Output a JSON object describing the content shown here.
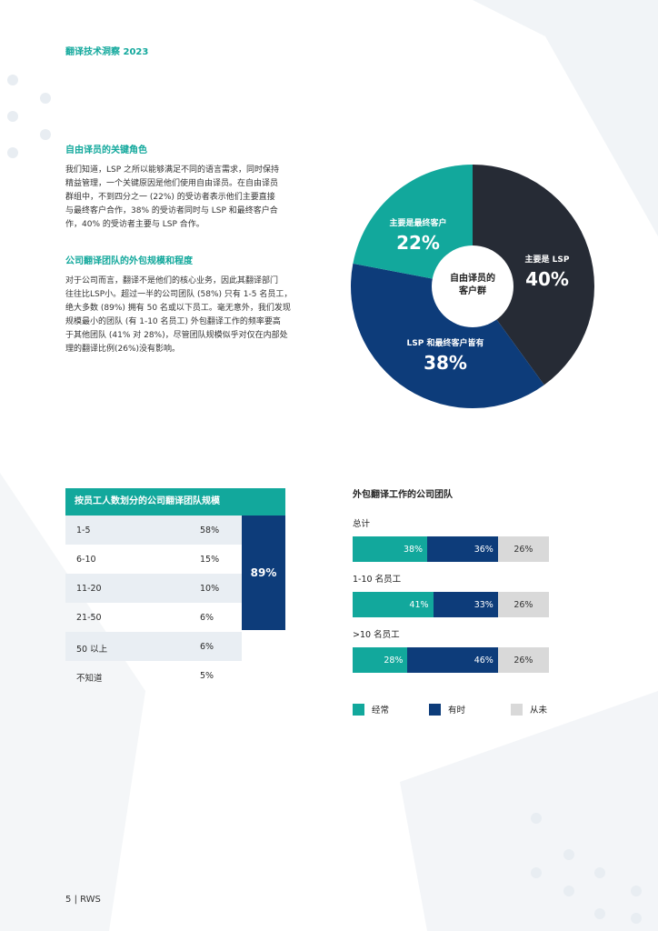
{
  "header": {
    "title": "翻译技术洞察 2023"
  },
  "section1": {
    "heading": "自由译员的关键角色",
    "lines": [
      "我们知道，LSP 之所以能够满足不同的语言需求，同时保持",
      "精益管理，一个关键原因是他们使用自由译员。在自由译员",
      "群组中，不到四分之一 (22%) 的受访者表示他们主要直接",
      "与最终客户合作，38% 的受访者同时与 LSP 和最终客户合",
      "作，40% 的受访者主要与 LSP 合作。"
    ]
  },
  "section2": {
    "heading": "公司翻译团队的外包规模和程度",
    "lines": [
      "对于公司而言，翻译不是他们的核心业务，因此其翻译部门",
      "往往比LSP小。超过一半的公司团队 (58%) 只有 1-5 名员工，",
      "绝大多数 (89%) 拥有 50 名或以下员工。毫无意外，我们发现",
      "规模最小的团队 (有 1-10 名员工) 外包翻译工作的频率要高",
      "于其他团队 (41% 对 28%)，尽管团队规模似乎对仅在内部处",
      "理的翻译比例(26%)没有影响。"
    ]
  },
  "pie": {
    "center_line1": "自由译员的",
    "center_line2": "客户群",
    "colors": {
      "lsp": "#262b35",
      "both": "#0d3c7a",
      "end": "#12a89c"
    },
    "slices": [
      {
        "label": "主要是 LSP",
        "pct_text": "40%",
        "value": 40
      },
      {
        "label": "LSP 和最终客户皆有",
        "pct_text": "38%",
        "value": 38
      },
      {
        "label": "主要是最终客户",
        "pct_text": "22%",
        "value": 22
      }
    ]
  },
  "table": {
    "title": "按员工人数划分的公司翻译团队规模",
    "rows": [
      {
        "size": "1-5",
        "pct": "58%"
      },
      {
        "size": "6-10",
        "pct": "15%"
      },
      {
        "size": "11-20",
        "pct": "10%"
      },
      {
        "size": "21-50",
        "pct": "6%"
      },
      {
        "size": "50 以上",
        "pct": "6%"
      },
      {
        "size": "不知道",
        "pct": "5%"
      }
    ],
    "group_total": "89%"
  },
  "bars": {
    "title": "外包翻译工作的公司团队",
    "colors": {
      "often": "#12a89c",
      "sometimes": "#0d3c7a",
      "never": "#d9d9d9"
    },
    "groups": [
      {
        "label": "总计",
        "often": 38,
        "sometimes": 36,
        "never": 26,
        "often_text": "38%",
        "sometimes_text": "36%",
        "never_text": "26%"
      },
      {
        "label": "1-10 名员工",
        "often": 41,
        "sometimes": 33,
        "never": 26,
        "often_text": "41%",
        "sometimes_text": "33%",
        "never_text": "26%"
      },
      {
        "label": ">10 名员工",
        "often": 28,
        "sometimes": 46,
        "never": 26,
        "often_text": "28%",
        "sometimes_text": "46%",
        "never_text": "26%"
      }
    ],
    "legend": {
      "often": "经常",
      "sometimes": "有时",
      "never": "从未"
    }
  },
  "chart_data": [
    {
      "type": "pie",
      "title": "",
      "categories": [
        "主要是 LSP",
        "LSP 和最终客户皆有",
        "主要是最终客户"
      ],
      "values": [
        40,
        38,
        22
      ]
    },
    {
      "type": "bar",
      "title": "外包翻译工作的公司团队",
      "stacked": true,
      "orientation": "horizontal",
      "categories": [
        "总计",
        "1-10 名员工",
        ">10 名员工"
      ],
      "series": [
        {
          "name": "经常",
          "values": [
            38,
            41,
            28
          ]
        },
        {
          "name": "有时",
          "values": [
            36,
            33,
            46
          ]
        },
        {
          "name": "从未",
          "values": [
            26,
            26,
            26
          ]
        }
      ]
    }
  ],
  "footer": {
    "page": "5",
    "brand": "RWS"
  }
}
